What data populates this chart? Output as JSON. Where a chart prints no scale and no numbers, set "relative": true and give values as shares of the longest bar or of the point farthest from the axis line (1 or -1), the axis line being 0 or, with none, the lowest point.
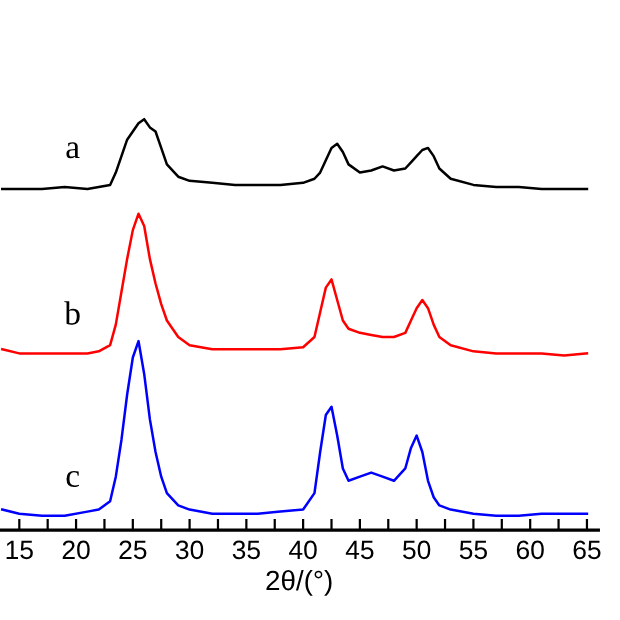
{
  "chart_data": {
    "type": "line",
    "relative": true,
    "xlabel": "2θ/(°)",
    "tick_labels": "x",
    "grid": false,
    "legend": false,
    "marker": "none",
    "line_style": "solid",
    "xlim": [
      13.3,
      66
    ],
    "xticks": [
      15,
      {
        "value": 17.5,
        "label": null
      },
      20,
      {
        "value": 22.5,
        "label": null
      },
      25,
      {
        "value": 27.5,
        "label": null
      },
      30,
      {
        "value": 32.5,
        "label": null
      },
      35,
      {
        "value": 37.5,
        "label": null
      },
      40,
      {
        "value": 42.5,
        "label": null
      },
      45,
      {
        "value": 47.5,
        "label": null
      },
      50,
      {
        "value": 52.5,
        "label": null
      },
      55,
      {
        "value": 57.5,
        "label": null
      },
      60,
      {
        "value": 62.5,
        "label": null
      },
      65
    ],
    "x": [
      13.5,
      15,
      17,
      19,
      21,
      22,
      23,
      23.5,
      24,
      24.5,
      25,
      25.5,
      26,
      26.5,
      27,
      27.5,
      28,
      29,
      30,
      32,
      34,
      36,
      38,
      40,
      41,
      41.5,
      42,
      42.5,
      43,
      43.5,
      44,
      45,
      46,
      47,
      48,
      49,
      49.5,
      50,
      50.5,
      51,
      51.5,
      52,
      53,
      55,
      57,
      59,
      61,
      63,
      65
    ],
    "series": [
      {
        "name": "a",
        "color": "#000000",
        "values": [
          0.83,
          0.83,
          0.83,
          0.835,
          0.83,
          0.835,
          0.84,
          0.87,
          0.91,
          0.95,
          0.97,
          0.99,
          1.0,
          0.98,
          0.97,
          0.93,
          0.89,
          0.86,
          0.85,
          0.845,
          0.84,
          0.84,
          0.84,
          0.845,
          0.855,
          0.87,
          0.9,
          0.93,
          0.94,
          0.92,
          0.89,
          0.87,
          0.875,
          0.885,
          0.875,
          0.88,
          0.895,
          0.91,
          0.925,
          0.93,
          0.91,
          0.88,
          0.855,
          0.84,
          0.835,
          0.835,
          0.83,
          0.83,
          0.83
        ]
      },
      {
        "name": "b",
        "color": "#ff0000",
        "values": [
          0.44,
          0.43,
          0.43,
          0.43,
          0.43,
          0.435,
          0.45,
          0.5,
          0.58,
          0.66,
          0.73,
          0.77,
          0.74,
          0.66,
          0.6,
          0.55,
          0.51,
          0.47,
          0.45,
          0.44,
          0.44,
          0.44,
          0.44,
          0.445,
          0.47,
          0.53,
          0.59,
          0.61,
          0.56,
          0.51,
          0.49,
          0.48,
          0.475,
          0.47,
          0.47,
          0.48,
          0.51,
          0.54,
          0.56,
          0.54,
          0.5,
          0.47,
          0.45,
          0.435,
          0.43,
          0.43,
          0.43,
          0.425,
          0.43
        ]
      },
      {
        "name": "c",
        "color": "#0000ff",
        "values": [
          0.05,
          0.04,
          0.035,
          0.035,
          0.045,
          0.05,
          0.07,
          0.13,
          0.22,
          0.33,
          0.42,
          0.46,
          0.38,
          0.27,
          0.19,
          0.13,
          0.09,
          0.06,
          0.05,
          0.04,
          0.04,
          0.04,
          0.045,
          0.05,
          0.09,
          0.19,
          0.28,
          0.3,
          0.23,
          0.15,
          0.12,
          0.13,
          0.14,
          0.13,
          0.12,
          0.15,
          0.2,
          0.23,
          0.19,
          0.12,
          0.08,
          0.06,
          0.05,
          0.04,
          0.035,
          0.035,
          0.04,
          0.04,
          0.04
        ]
      }
    ]
  }
}
